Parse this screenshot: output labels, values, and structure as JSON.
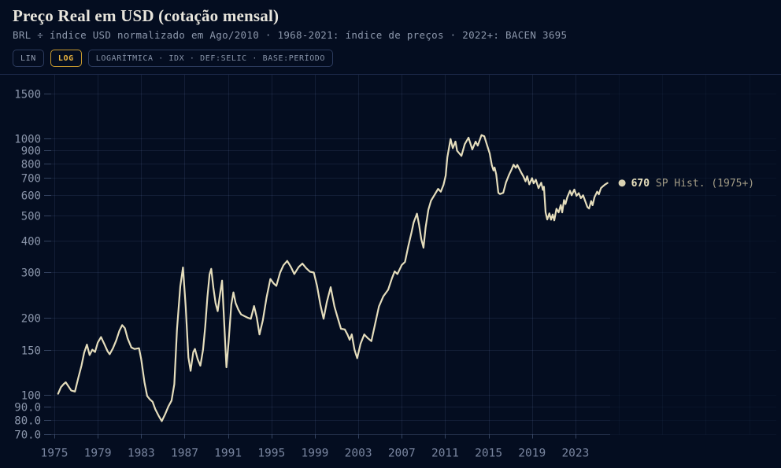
{
  "header": {
    "title": "Preço Real em USD (cotação mensal)",
    "subtitle": "BRL ÷ índice USD normalizado em Ago/2010 · 1968-2021: índice de preços · 2022+: BACEN 3695",
    "buttons": {
      "lin": "LIN",
      "log": "LOG",
      "meta": "LOGARÍTMICA · IDX · DEF:SELIC · BASE:PERÍODO"
    }
  },
  "legend": {
    "marker": "dot",
    "value": "670",
    "series_label": "SP Hist. (1975+)"
  },
  "colors": {
    "background": "#040d20",
    "panel_border": "#1d2a4c",
    "grid": "rgba(125,150,210,0.13)",
    "grid_faint": "rgba(125,150,210,0.05)",
    "axis_bottom": "rgba(140,165,215,0.22)",
    "tick": "rgba(140,165,215,0.35)",
    "y_label": "#8b96ab",
    "x_label": "#78849e",
    "line": "#e5ddbc",
    "dot": "#d9d2b2",
    "legend_value": "#e8e0bd",
    "legend_muted": "#a39c86",
    "accent_gold": "#e9b43f"
  },
  "chart_data": {
    "type": "line",
    "title": "Preço Real em USD (cotação mensal)",
    "xlabel": "",
    "ylabel": "",
    "y_scale": "log",
    "grid": true,
    "legend_position": "right of line end",
    "xlim": [
      1974.1,
      2026.3
    ],
    "ylim": [
      70,
      1780
    ],
    "x_ticks": [
      1975,
      1979,
      1983,
      1987,
      1991,
      1995,
      1999,
      2003,
      2007,
      2011,
      2015,
      2019,
      2023
    ],
    "x_ticks_faint_extension": [
      2027,
      2031,
      2035,
      2039
    ],
    "y_ticks": [
      {
        "label": "1500",
        "value": 1500
      },
      {
        "label": "1000",
        "value": 1000
      },
      {
        "label": "900",
        "value": 900
      },
      {
        "label": "800",
        "value": 800
      },
      {
        "label": "700",
        "value": 700
      },
      {
        "label": "600",
        "value": 600
      },
      {
        "label": "500",
        "value": 500
      },
      {
        "label": "400",
        "value": 400
      },
      {
        "label": "300",
        "value": 300
      },
      {
        "label": "200",
        "value": 200
      },
      {
        "label": "150",
        "value": 150
      },
      {
        "label": "100",
        "value": 100
      },
      {
        "label": "90.0",
        "value": 90
      },
      {
        "label": "80.0",
        "value": 80
      },
      {
        "label": "70.0",
        "value": 70
      }
    ],
    "series": [
      {
        "name": "SP Hist. (1975+)",
        "last_value": 670,
        "points": [
          [
            1975.35,
            101
          ],
          [
            1975.6,
            107
          ],
          [
            1975.85,
            110
          ],
          [
            1976.05,
            112
          ],
          [
            1976.3,
            108
          ],
          [
            1976.55,
            104
          ],
          [
            1976.9,
            103
          ],
          [
            1977.2,
            116
          ],
          [
            1977.5,
            130
          ],
          [
            1977.75,
            146
          ],
          [
            1978.0,
            157
          ],
          [
            1978.25,
            143
          ],
          [
            1978.5,
            150
          ],
          [
            1978.75,
            147
          ],
          [
            1979.0,
            160
          ],
          [
            1979.3,
            168
          ],
          [
            1979.6,
            158
          ],
          [
            1979.9,
            148
          ],
          [
            1980.1,
            144
          ],
          [
            1980.4,
            152
          ],
          [
            1980.7,
            163
          ],
          [
            1981.0,
            178
          ],
          [
            1981.25,
            187
          ],
          [
            1981.5,
            182
          ],
          [
            1981.75,
            166
          ],
          [
            1982.1,
            153
          ],
          [
            1982.4,
            151
          ],
          [
            1982.8,
            152
          ],
          [
            1983.0,
            138
          ],
          [
            1983.3,
            112
          ],
          [
            1983.55,
            99
          ],
          [
            1983.8,
            96
          ],
          [
            1984.05,
            94
          ],
          [
            1984.3,
            88
          ],
          [
            1984.6,
            83
          ],
          [
            1984.9,
            79
          ],
          [
            1985.2,
            84
          ],
          [
            1985.5,
            90
          ],
          [
            1985.8,
            95
          ],
          [
            1986.05,
            110
          ],
          [
            1986.3,
            180
          ],
          [
            1986.6,
            265
          ],
          [
            1986.85,
            314
          ],
          [
            1987.1,
            220
          ],
          [
            1987.35,
            140
          ],
          [
            1987.55,
            124
          ],
          [
            1987.8,
            147
          ],
          [
            1987.95,
            151
          ],
          [
            1988.2,
            138
          ],
          [
            1988.45,
            130
          ],
          [
            1988.7,
            150
          ],
          [
            1988.9,
            185
          ],
          [
            1989.1,
            240
          ],
          [
            1989.3,
            295
          ],
          [
            1989.45,
            310
          ],
          [
            1989.65,
            262
          ],
          [
            1989.85,
            228
          ],
          [
            1990.05,
            212
          ],
          [
            1990.25,
            245
          ],
          [
            1990.45,
            279
          ],
          [
            1990.65,
            190
          ],
          [
            1990.85,
            128
          ],
          [
            1991.05,
            160
          ],
          [
            1991.3,
            225
          ],
          [
            1991.5,
            251
          ],
          [
            1991.7,
            228
          ],
          [
            1991.95,
            215
          ],
          [
            1992.2,
            206
          ],
          [
            1992.5,
            203
          ],
          [
            1992.8,
            200
          ],
          [
            1993.1,
            198
          ],
          [
            1993.4,
            222
          ],
          [
            1993.65,
            200
          ],
          [
            1993.9,
            172
          ],
          [
            1994.2,
            195
          ],
          [
            1994.55,
            240
          ],
          [
            1994.9,
            283
          ],
          [
            1995.2,
            272
          ],
          [
            1995.45,
            266
          ],
          [
            1995.8,
            300
          ],
          [
            1996.1,
            320
          ],
          [
            1996.45,
            333
          ],
          [
            1996.8,
            315
          ],
          [
            1997.1,
            296
          ],
          [
            1997.5,
            315
          ],
          [
            1997.85,
            325
          ],
          [
            1998.2,
            312
          ],
          [
            1998.55,
            302
          ],
          [
            1998.9,
            300
          ],
          [
            1999.2,
            266
          ],
          [
            1999.5,
            225
          ],
          [
            1999.8,
            198
          ],
          [
            2000.1,
            230
          ],
          [
            2000.45,
            263
          ],
          [
            2000.8,
            221
          ],
          [
            2001.1,
            200
          ],
          [
            2001.4,
            181
          ],
          [
            2001.75,
            180
          ],
          [
            2002.0,
            172
          ],
          [
            2002.2,
            164
          ],
          [
            2002.4,
            172
          ],
          [
            2002.65,
            150
          ],
          [
            2002.9,
            139
          ],
          [
            2003.2,
            158
          ],
          [
            2003.55,
            172
          ],
          [
            2003.9,
            166
          ],
          [
            2004.2,
            162
          ],
          [
            2004.5,
            185
          ],
          [
            2004.9,
            221
          ],
          [
            2005.3,
            242
          ],
          [
            2005.75,
            257
          ],
          [
            2006.1,
            285
          ],
          [
            2006.35,
            303
          ],
          [
            2006.6,
            296
          ],
          [
            2007.0,
            321
          ],
          [
            2007.3,
            330
          ],
          [
            2007.6,
            380
          ],
          [
            2007.9,
            430
          ],
          [
            2008.1,
            470
          ],
          [
            2008.4,
            509
          ],
          [
            2008.6,
            460
          ],
          [
            2008.8,
            405
          ],
          [
            2009.0,
            375
          ],
          [
            2009.2,
            450
          ],
          [
            2009.45,
            527
          ],
          [
            2009.7,
            572
          ],
          [
            2010.0,
            600
          ],
          [
            2010.35,
            636
          ],
          [
            2010.6,
            620
          ],
          [
            2010.85,
            660
          ],
          [
            2011.05,
            716
          ],
          [
            2011.2,
            844
          ],
          [
            2011.5,
            995
          ],
          [
            2011.7,
            916
          ],
          [
            2011.95,
            972
          ],
          [
            2012.1,
            895
          ],
          [
            2012.5,
            855
          ],
          [
            2012.8,
            950
          ],
          [
            2013.15,
            1007
          ],
          [
            2013.5,
            906
          ],
          [
            2013.8,
            972
          ],
          [
            2014.0,
            938
          ],
          [
            2014.35,
            1031
          ],
          [
            2014.6,
            1020
          ],
          [
            2014.8,
            960
          ],
          [
            2015.1,
            874
          ],
          [
            2015.3,
            787
          ],
          [
            2015.45,
            750
          ],
          [
            2015.55,
            770
          ],
          [
            2015.7,
            724
          ],
          [
            2015.9,
            614
          ],
          [
            2016.05,
            607
          ],
          [
            2016.35,
            614
          ],
          [
            2016.6,
            674
          ],
          [
            2016.9,
            724
          ],
          [
            2017.1,
            755
          ],
          [
            2017.3,
            790
          ],
          [
            2017.5,
            768
          ],
          [
            2017.65,
            788
          ],
          [
            2017.85,
            758
          ],
          [
            2018.05,
            730
          ],
          [
            2018.2,
            712
          ],
          [
            2018.4,
            680
          ],
          [
            2018.55,
            712
          ],
          [
            2018.75,
            662
          ],
          [
            2019.0,
            700
          ],
          [
            2019.15,
            668
          ],
          [
            2019.35,
            690
          ],
          [
            2019.6,
            640
          ],
          [
            2019.85,
            672
          ],
          [
            2020.0,
            630
          ],
          [
            2020.1,
            648
          ],
          [
            2020.25,
            515
          ],
          [
            2020.4,
            483
          ],
          [
            2020.6,
            510
          ],
          [
            2020.75,
            482
          ],
          [
            2020.9,
            505
          ],
          [
            2021.05,
            479
          ],
          [
            2021.25,
            532
          ],
          [
            2021.45,
            515
          ],
          [
            2021.65,
            550
          ],
          [
            2021.78,
            515
          ],
          [
            2021.95,
            575
          ],
          [
            2022.08,
            555
          ],
          [
            2022.25,
            590
          ],
          [
            2022.5,
            625
          ],
          [
            2022.65,
            600
          ],
          [
            2022.9,
            632
          ],
          [
            2023.1,
            597
          ],
          [
            2023.3,
            612
          ],
          [
            2023.5,
            585
          ],
          [
            2023.7,
            600
          ],
          [
            2023.9,
            570
          ],
          [
            2024.1,
            540
          ],
          [
            2024.25,
            533
          ],
          [
            2024.45,
            570
          ],
          [
            2024.58,
            549
          ],
          [
            2024.75,
            590
          ],
          [
            2025.0,
            620
          ],
          [
            2025.15,
            605
          ],
          [
            2025.35,
            640
          ],
          [
            2025.55,
            652
          ],
          [
            2025.75,
            662
          ],
          [
            2025.95,
            670
          ]
        ]
      }
    ]
  }
}
